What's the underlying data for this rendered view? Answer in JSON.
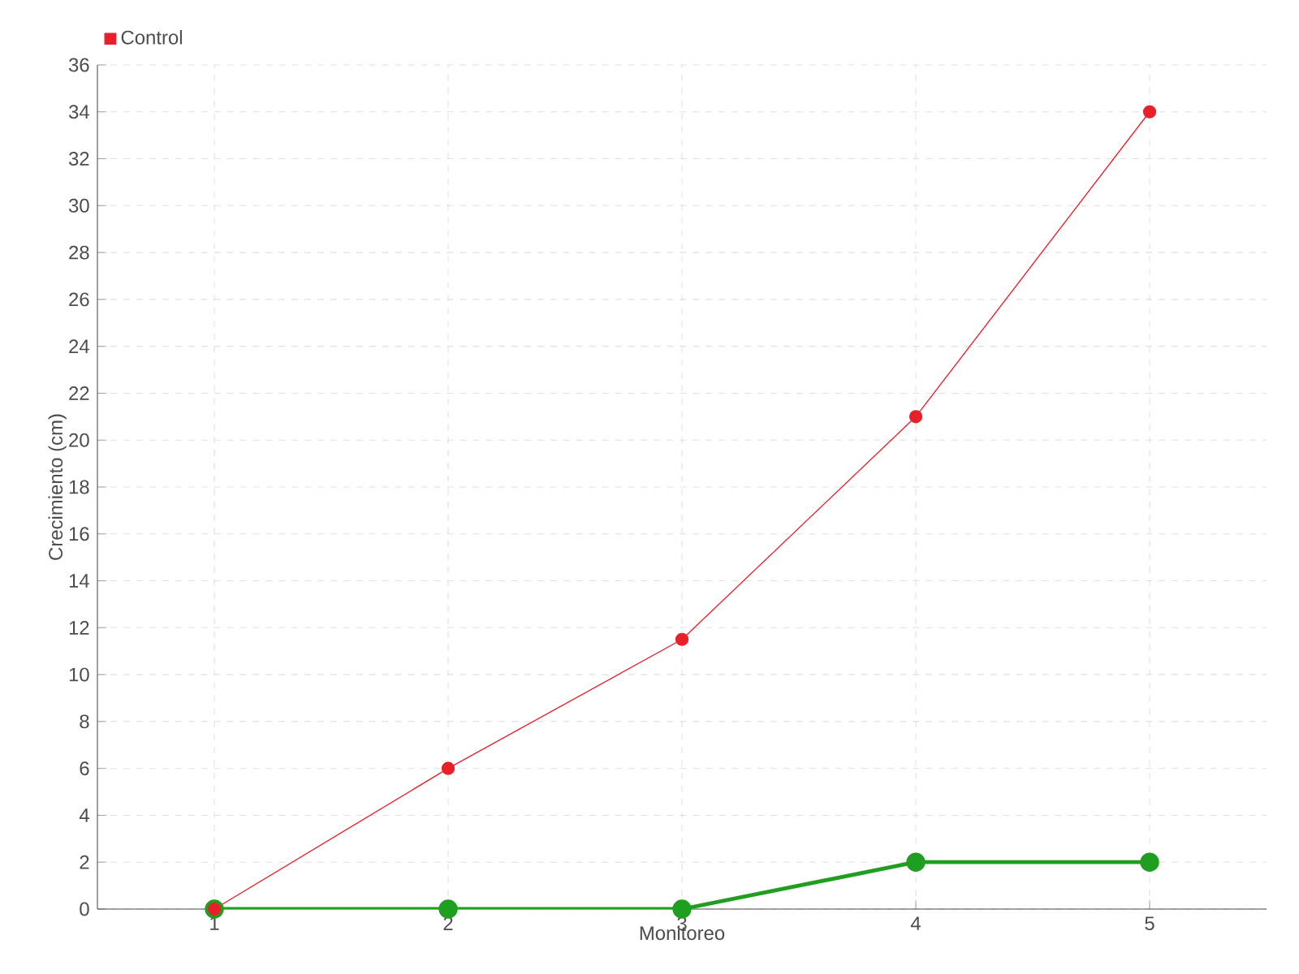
{
  "chart_data": {
    "type": "line",
    "xlabel": "Monitoreo",
    "ylabel": "Crecimiento (cm)",
    "x": [
      1,
      2,
      3,
      4,
      5
    ],
    "series": [
      {
        "color": "#1f9e1f",
        "values": [
          0,
          0,
          0,
          2,
          2
        ]
      },
      {
        "name": "Control",
        "color": "#e8202a",
        "values": [
          0,
          6,
          11.5,
          21,
          34
        ]
      }
    ],
    "xlim": [
      0.5,
      5.5
    ],
    "xticks": [
      1,
      2,
      3,
      4,
      5
    ],
    "ylim": [
      0,
      36
    ],
    "yticks": [
      0,
      2,
      4,
      6,
      8,
      10,
      12,
      14,
      16,
      18,
      20,
      22,
      24,
      26,
      28,
      30,
      32,
      34,
      36
    ],
    "grid": true,
    "legend": "top left",
    "marker": "circle",
    "line_style": "solid"
  }
}
